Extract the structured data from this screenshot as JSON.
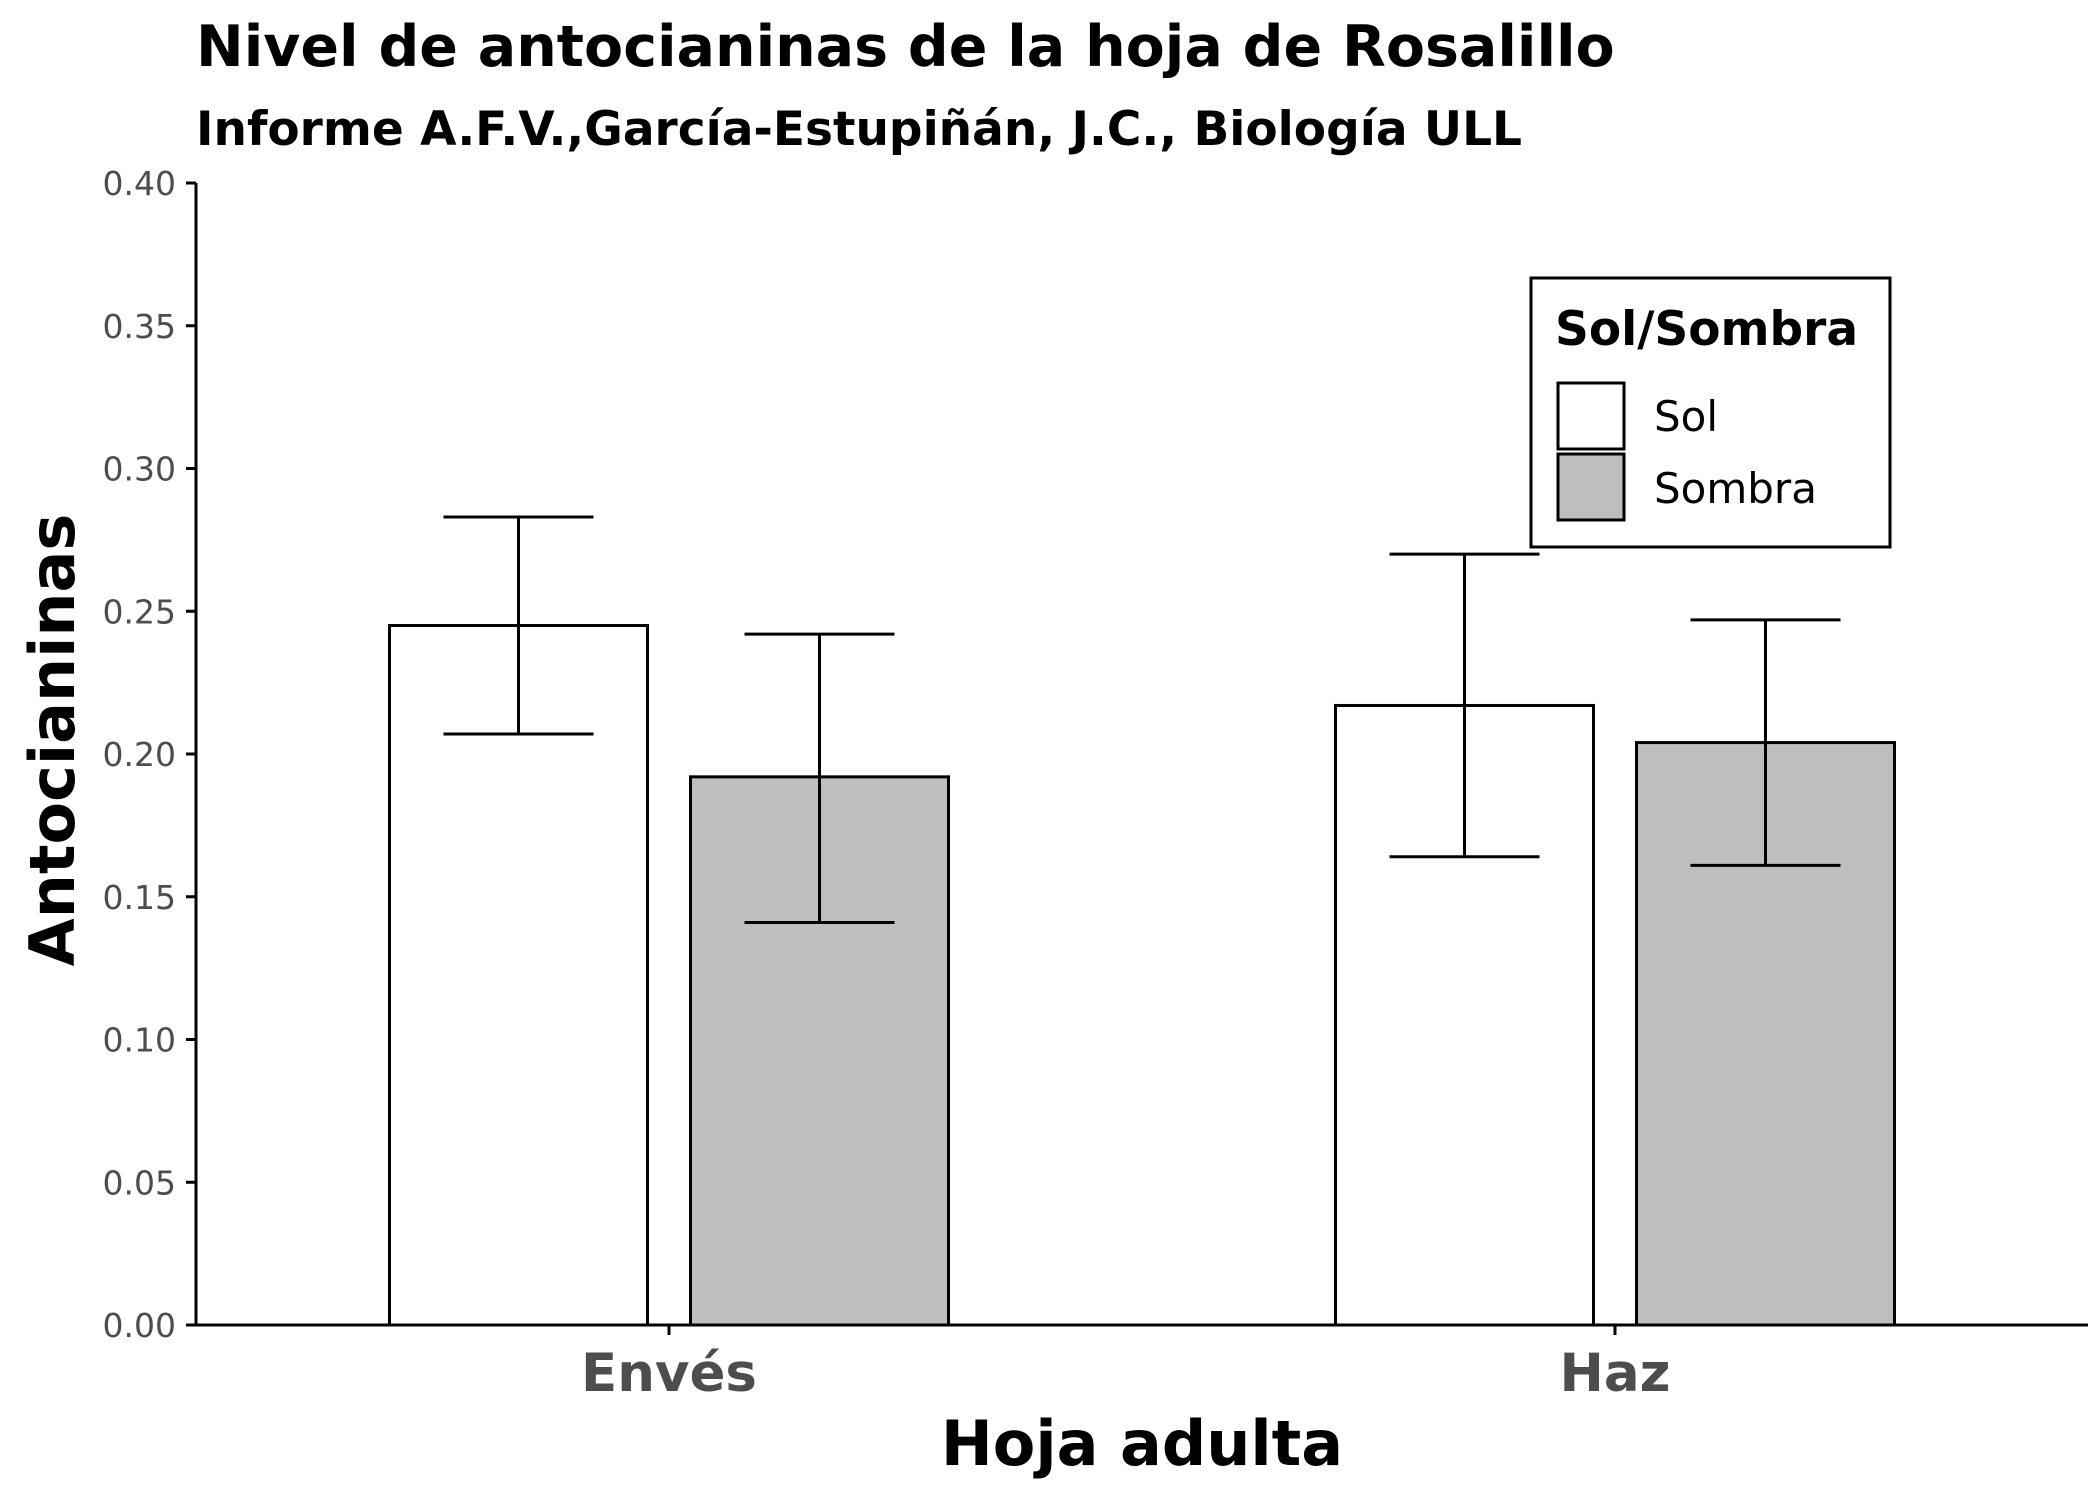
{
  "chart_data": {
    "type": "bar",
    "title": "Nivel de antocianinas de la hoja de Rosalillo",
    "subtitle": "Informe A.F.V.,García-Estupiñán, J.C., Biología ULL",
    "xlabel": "Hoja adulta",
    "ylabel": "Antocianinas",
    "categories": [
      "Envés",
      "Haz"
    ],
    "ylim": [
      0,
      0.4
    ],
    "yticks": [
      0.0,
      0.05,
      0.1,
      0.15,
      0.2,
      0.25,
      0.3,
      0.35,
      0.4
    ],
    "ytick_labels": [
      "0.00",
      "0.05",
      "0.10",
      "0.15",
      "0.20",
      "0.25",
      "0.30",
      "0.35",
      "0.40"
    ],
    "grid": false,
    "legend": {
      "title": "Sol/Sombra",
      "position": "top-right"
    },
    "series": [
      {
        "name": "Sol",
        "color": "#ffffff",
        "values": [
          0.245,
          0.217
        ],
        "error_low": [
          0.207,
          0.164
        ],
        "error_high": [
          0.283,
          0.27
        ]
      },
      {
        "name": "Sombra",
        "color": "#bebebe",
        "values": [
          0.192,
          0.204
        ],
        "error_low": [
          0.141,
          0.161
        ],
        "error_high": [
          0.242,
          0.247
        ]
      }
    ]
  }
}
